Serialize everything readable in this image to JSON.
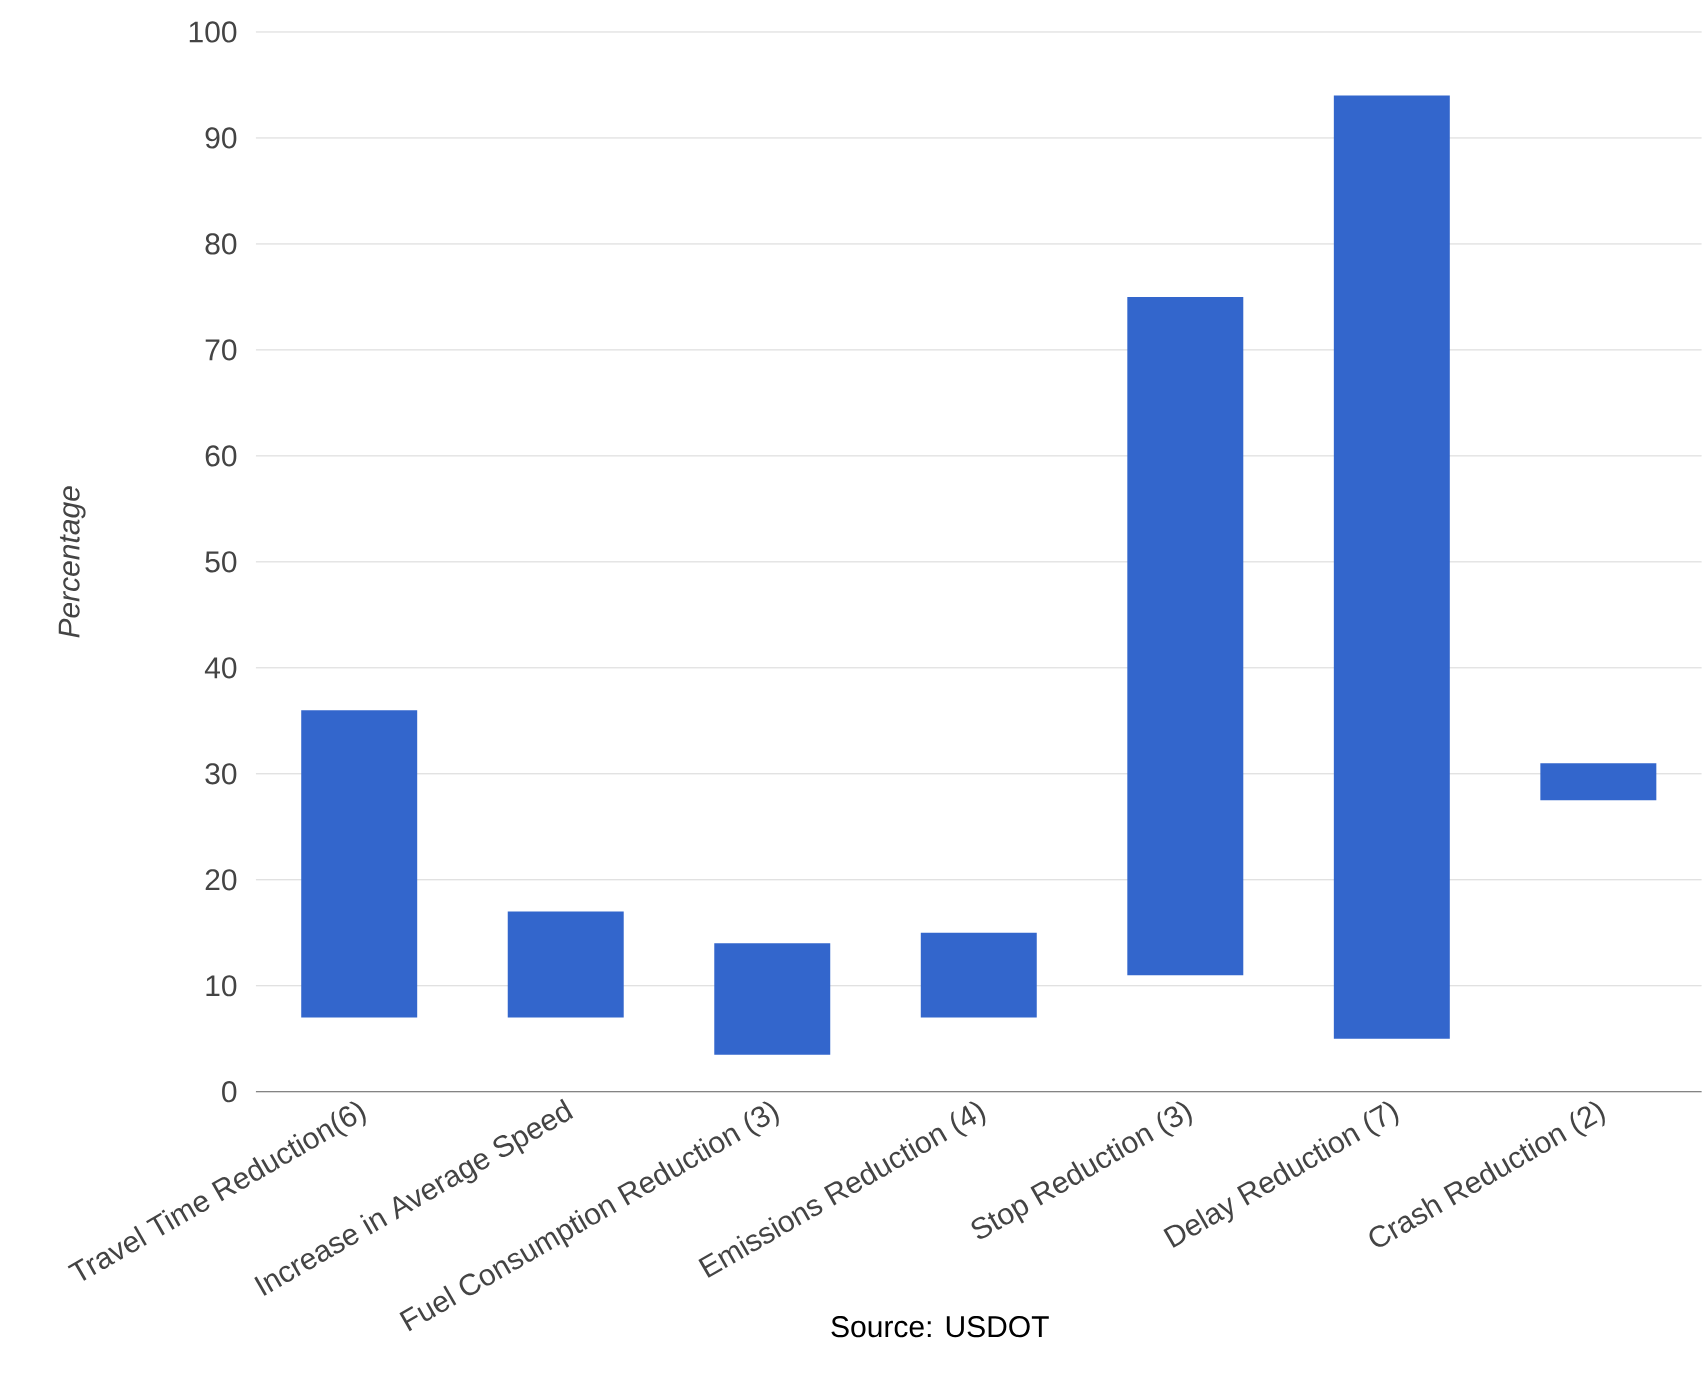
{
  "chart_data": {
    "type": "bar",
    "ylabel": "Percentage",
    "categories": [
      "Travel Time Reduction(6)",
      "Increase in Average Speed",
      "Fuel Consumption Reduction (3)",
      "Emissions Reduction (4)",
      "Stop Reduction (3)",
      "Delay Reduction (7)",
      "Crash Reduction (2)"
    ],
    "base": [
      7,
      7,
      3.5,
      7,
      11,
      5,
      27.5
    ],
    "values": [
      29,
      10,
      10.5,
      8,
      64,
      89,
      3.5
    ],
    "color": "#3366cc",
    "ylim": [
      0,
      100
    ],
    "yticks": [
      0,
      10,
      20,
      30,
      40,
      50,
      60,
      70,
      80,
      90,
      100
    ],
    "grid": "y",
    "annotations": [
      "Source: USDOT"
    ]
  }
}
